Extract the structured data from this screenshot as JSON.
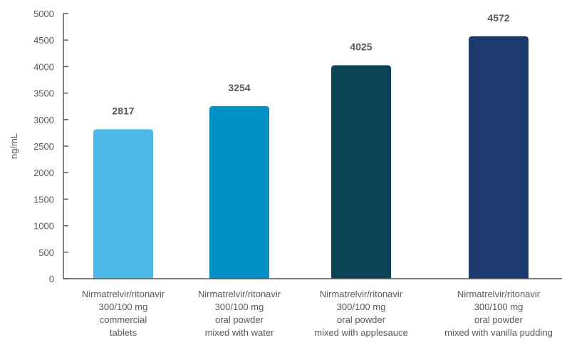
{
  "chart_data": {
    "type": "bar",
    "ylabel": "ng/mL",
    "xlabel": "",
    "ylim": [
      0,
      5000
    ],
    "yticks": [
      0,
      500,
      1000,
      1500,
      2000,
      2500,
      3000,
      3500,
      4000,
      4500,
      5000
    ],
    "grid": false,
    "categories": [
      [
        "Nirmatrelvir/ritonavir",
        "300/100 mg",
        "commercial",
        "tablets"
      ],
      [
        "Nirmatrelvir/ritonavir",
        "300/100 mg",
        "oral powder",
        "mixed with water"
      ],
      [
        "Nirmatrelvir/ritonavir",
        "300/100 mg",
        "oral powder",
        "mixed with applesauce"
      ],
      [
        "Nirmatrelvir/ritonavir",
        "300/100 mg",
        "oral powder",
        "mixed with vanilla pudding"
      ]
    ],
    "values": [
      2817,
      3254,
      4025,
      4572
    ],
    "data_labels": [
      "2817",
      "3254",
      "4025",
      "4572"
    ],
    "colors": [
      "#4cb8e6",
      "#0090c5",
      "#0c4256",
      "#1c3a6e"
    ]
  }
}
